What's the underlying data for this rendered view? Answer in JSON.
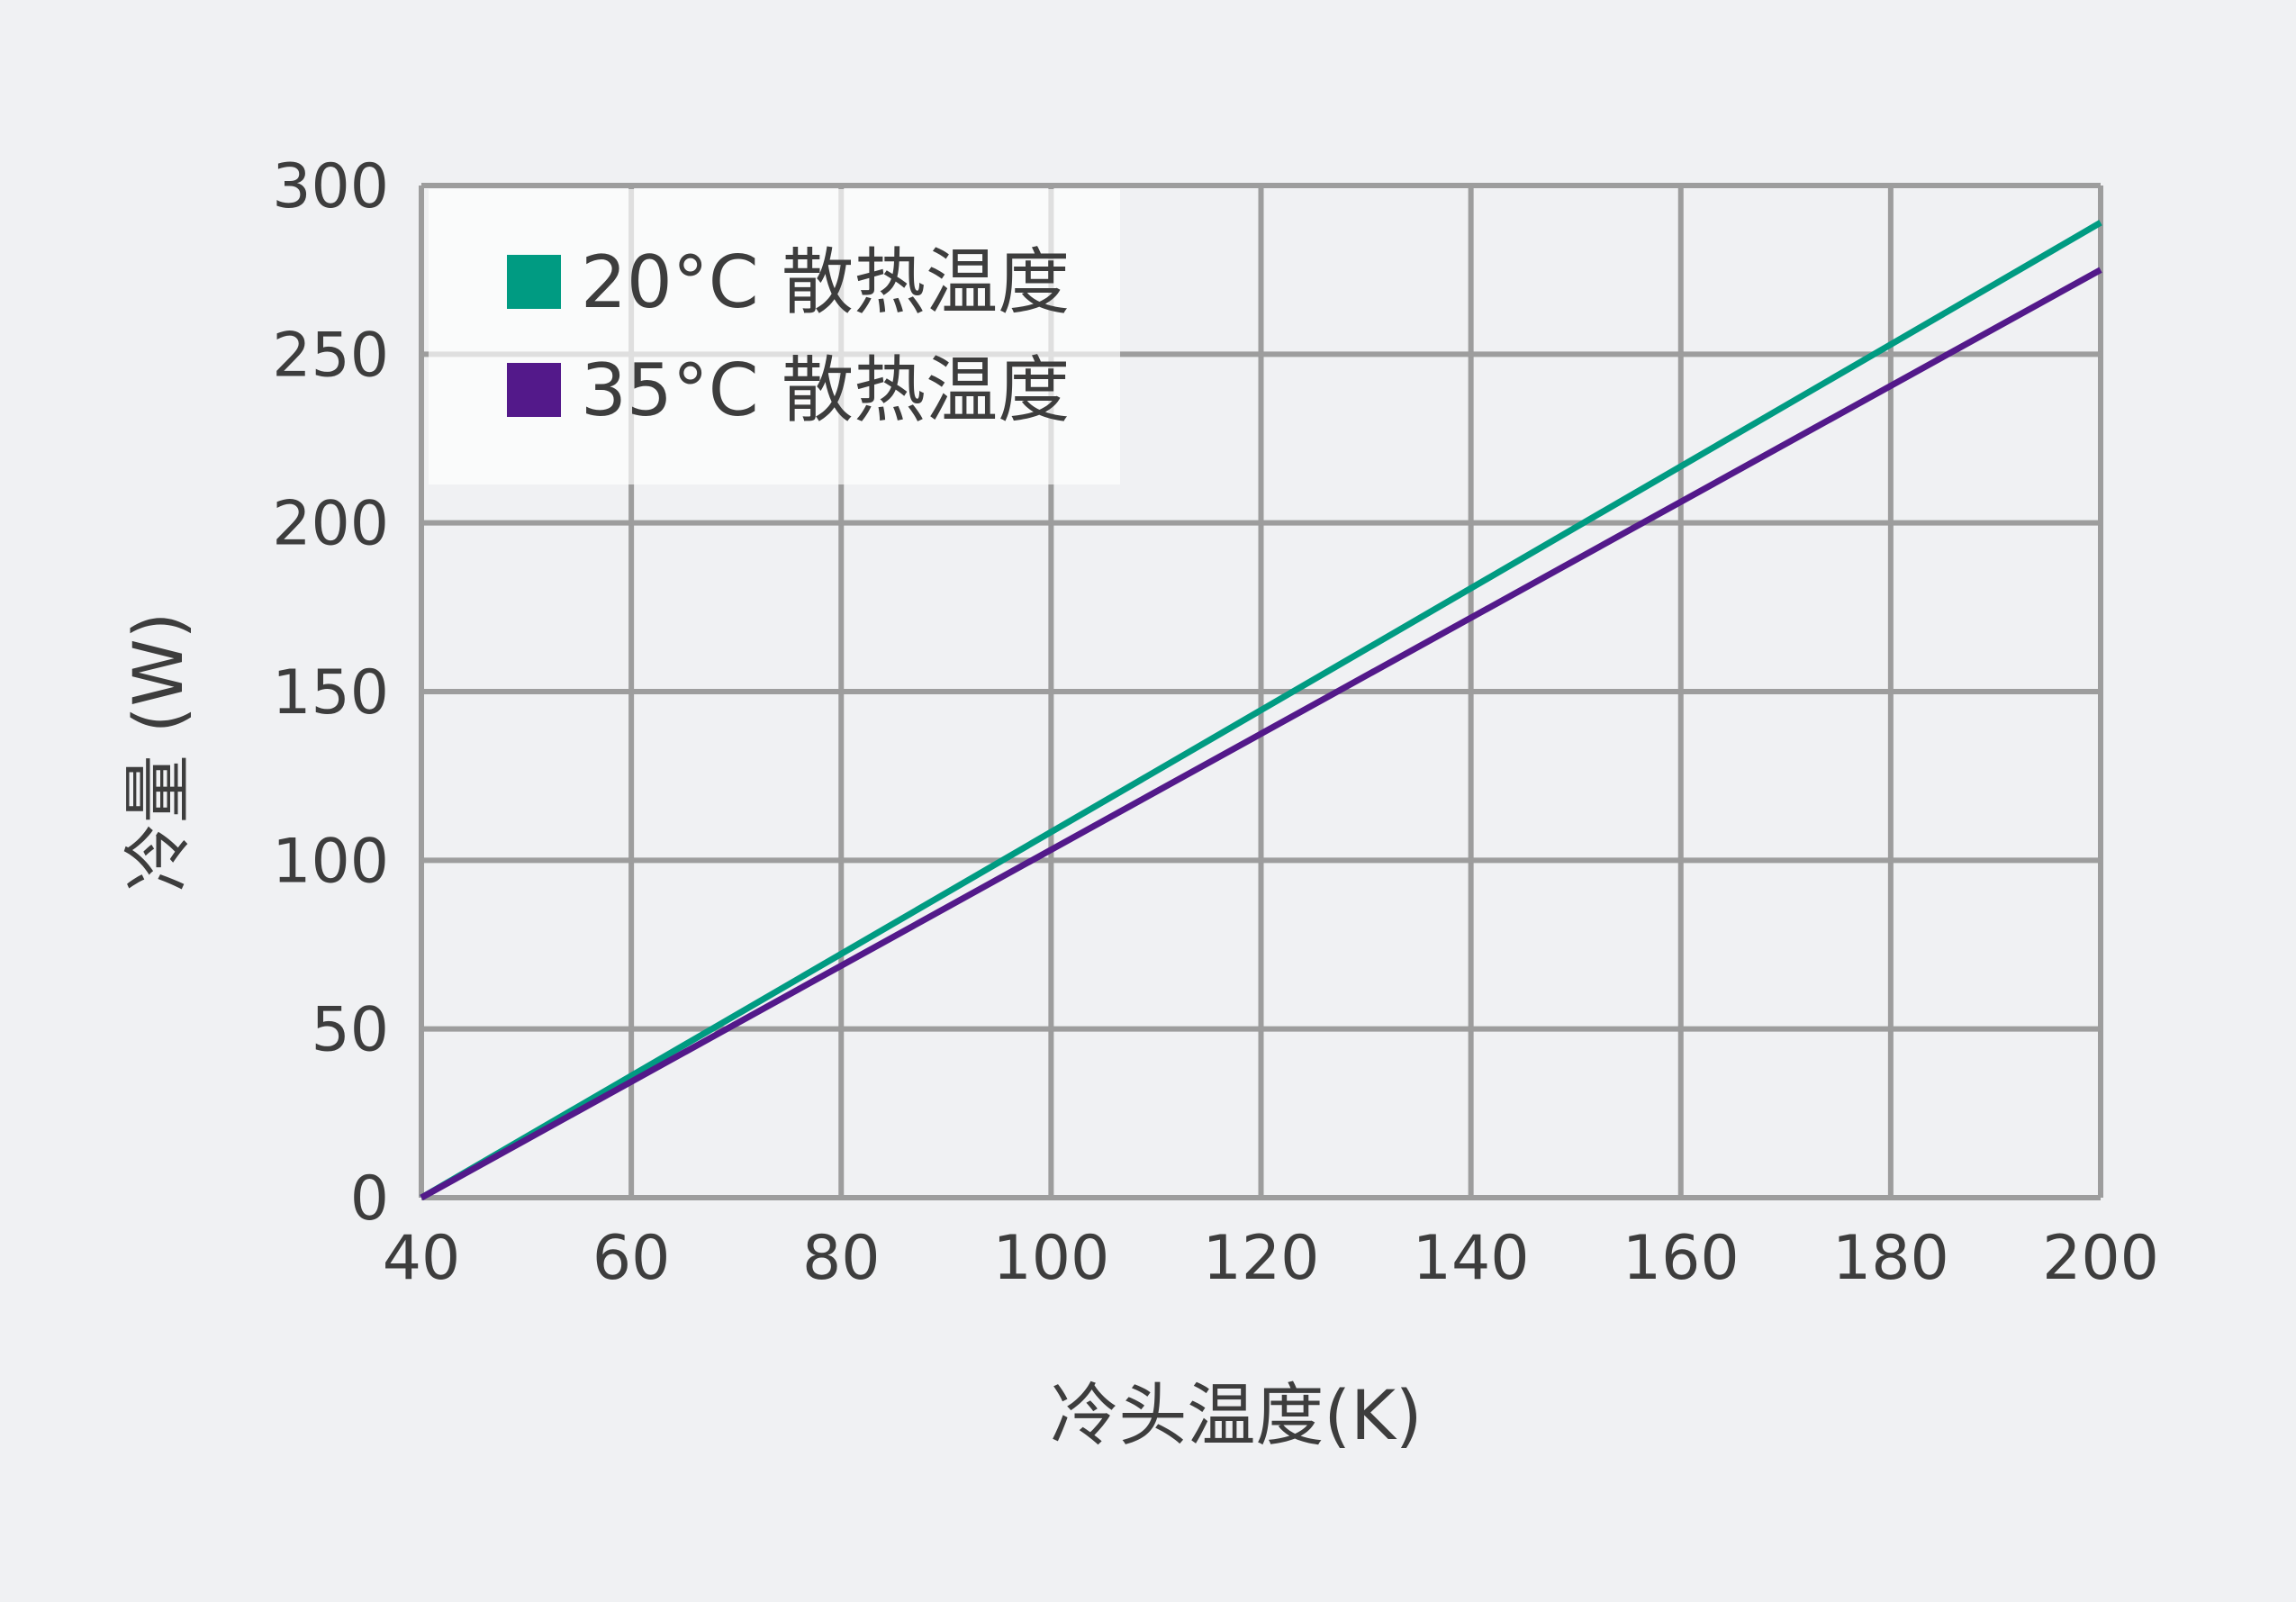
{
  "chart_data": {
    "type": "line",
    "xlabel": "冷头温度(K)",
    "ylabel": "冷量 (W)",
    "xlim": [
      40,
      200
    ],
    "ylim": [
      0,
      300
    ],
    "x_ticks": [
      "40",
      "60",
      "80",
      "100",
      "120",
      "140",
      "160",
      "180",
      "200"
    ],
    "y_ticks": [
      "0",
      "50",
      "100",
      "150",
      "200",
      "250",
      "300"
    ],
    "grid": true,
    "legend_position": "top-left",
    "series": [
      {
        "name": "20°C 散热温度",
        "color": "#009b82",
        "x": [
          40,
          200
        ],
        "y": [
          0,
          289
        ]
      },
      {
        "name": "35°C 散热温度",
        "color": "#53198a",
        "x": [
          40,
          200
        ],
        "y": [
          0,
          275
        ]
      }
    ]
  }
}
